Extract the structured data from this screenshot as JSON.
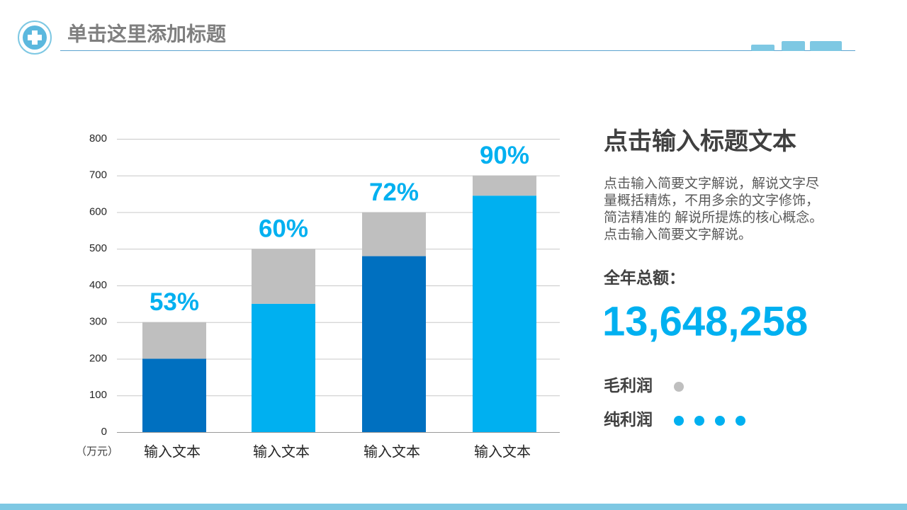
{
  "header": {
    "title": "单击这里添加标题"
  },
  "chart_data": {
    "type": "stacked_bar",
    "categories": [
      "输入文本",
      "输入文本",
      "输入文本",
      "输入文本"
    ],
    "ylabel": "（万元）",
    "ylim": [
      0,
      800
    ],
    "yticks": [
      0,
      100,
      200,
      300,
      400,
      500,
      600,
      700,
      800
    ],
    "grid": true,
    "series": [
      {
        "name": "纯利润",
        "color": "#00b0f0",
        "colors": [
          "#0070c0",
          "#00b0f0",
          "#0070c0",
          "#00b0f0"
        ],
        "values": [
          200,
          350,
          480,
          645
        ]
      },
      {
        "name": "毛利润",
        "color": "#bfbfbf",
        "values": [
          100,
          150,
          120,
          55
        ]
      }
    ],
    "bar_labels": [
      "53%",
      "60%",
      "72%",
      "90%"
    ]
  },
  "side": {
    "heading": "点击输入标题文本",
    "paragraph": [
      "点击输入简要文字解说，解说文字尽",
      "量概括精炼，不用多余的文字修饰，",
      "简洁精准的  解说所提炼的核心概念。",
      "点击输入简要文字解说。"
    ],
    "total_label": "全年总额：",
    "total": "13,648,258"
  }
}
